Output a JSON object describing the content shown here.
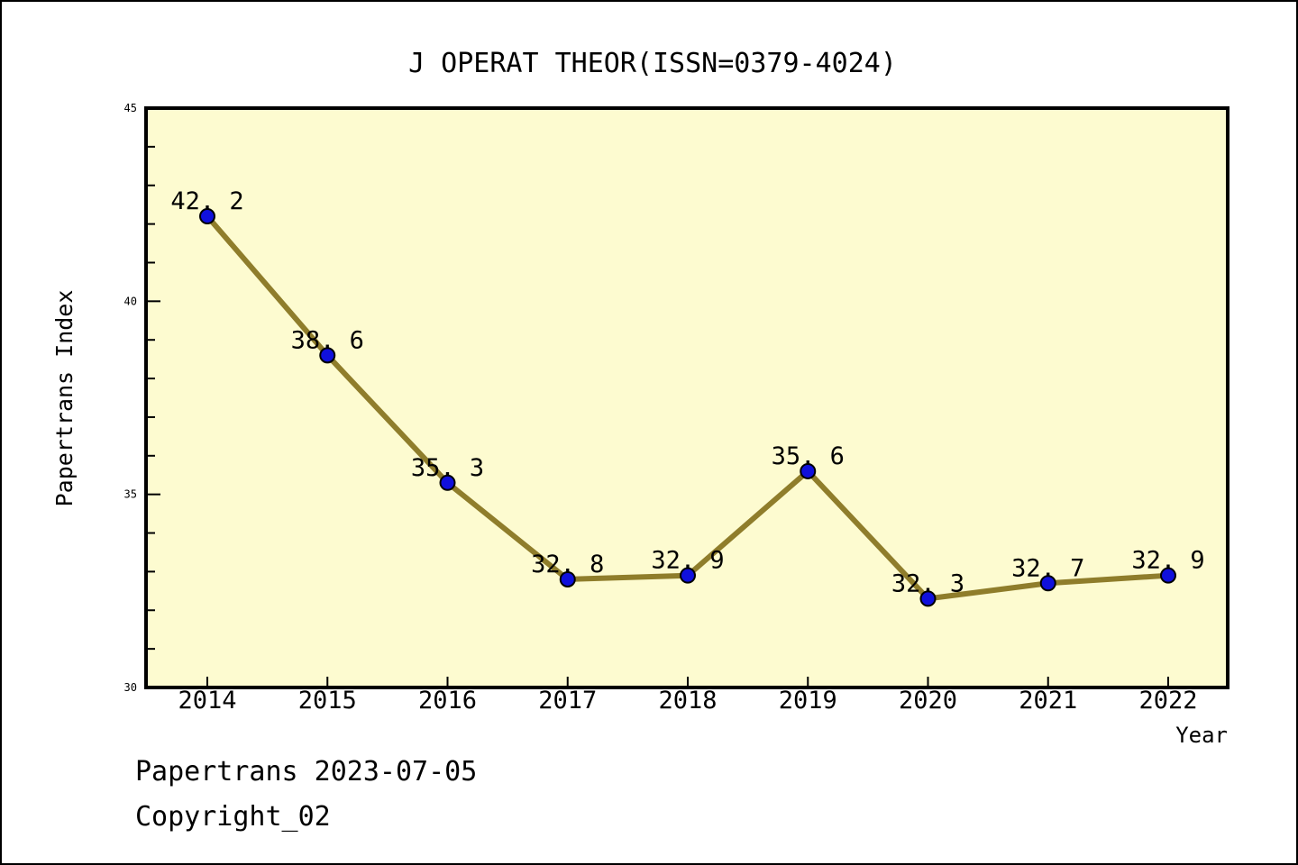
{
  "title": "J OPERAT THEOR(ISSN=0379-4024)",
  "footer": {
    "line1": "Papertrans 2023-07-05",
    "line2": "Copyright_02"
  },
  "chart_data": {
    "type": "line",
    "title": "J OPERAT THEOR(ISSN=0379-4024)",
    "xlabel": "Year",
    "ylabel": "Papertrans Index",
    "x": [
      2014,
      2015,
      2016,
      2017,
      2018,
      2019,
      2020,
      2021,
      2022
    ],
    "values": [
      42.2,
      38.6,
      35.3,
      32.8,
      32.9,
      35.6,
      32.3,
      32.7,
      32.9
    ],
    "point_labels": [
      "42. 2",
      "38. 6",
      "35. 3",
      "32. 8",
      "32. 9",
      "35. 6",
      "32. 3",
      "32. 7",
      "32. 9"
    ],
    "ylim": [
      30,
      45
    ],
    "yticks_major": [
      30,
      35,
      40,
      45
    ],
    "ytick_minor_step": 1,
    "grid": false,
    "legend": "none",
    "colors": {
      "plot_bg": "#fdfbd0",
      "outer_bg": "#ffffff",
      "line": "#8f7d2b",
      "marker": "#1010dc",
      "marker_edge": "#000000",
      "text": "#000000",
      "border": "#000000"
    }
  }
}
